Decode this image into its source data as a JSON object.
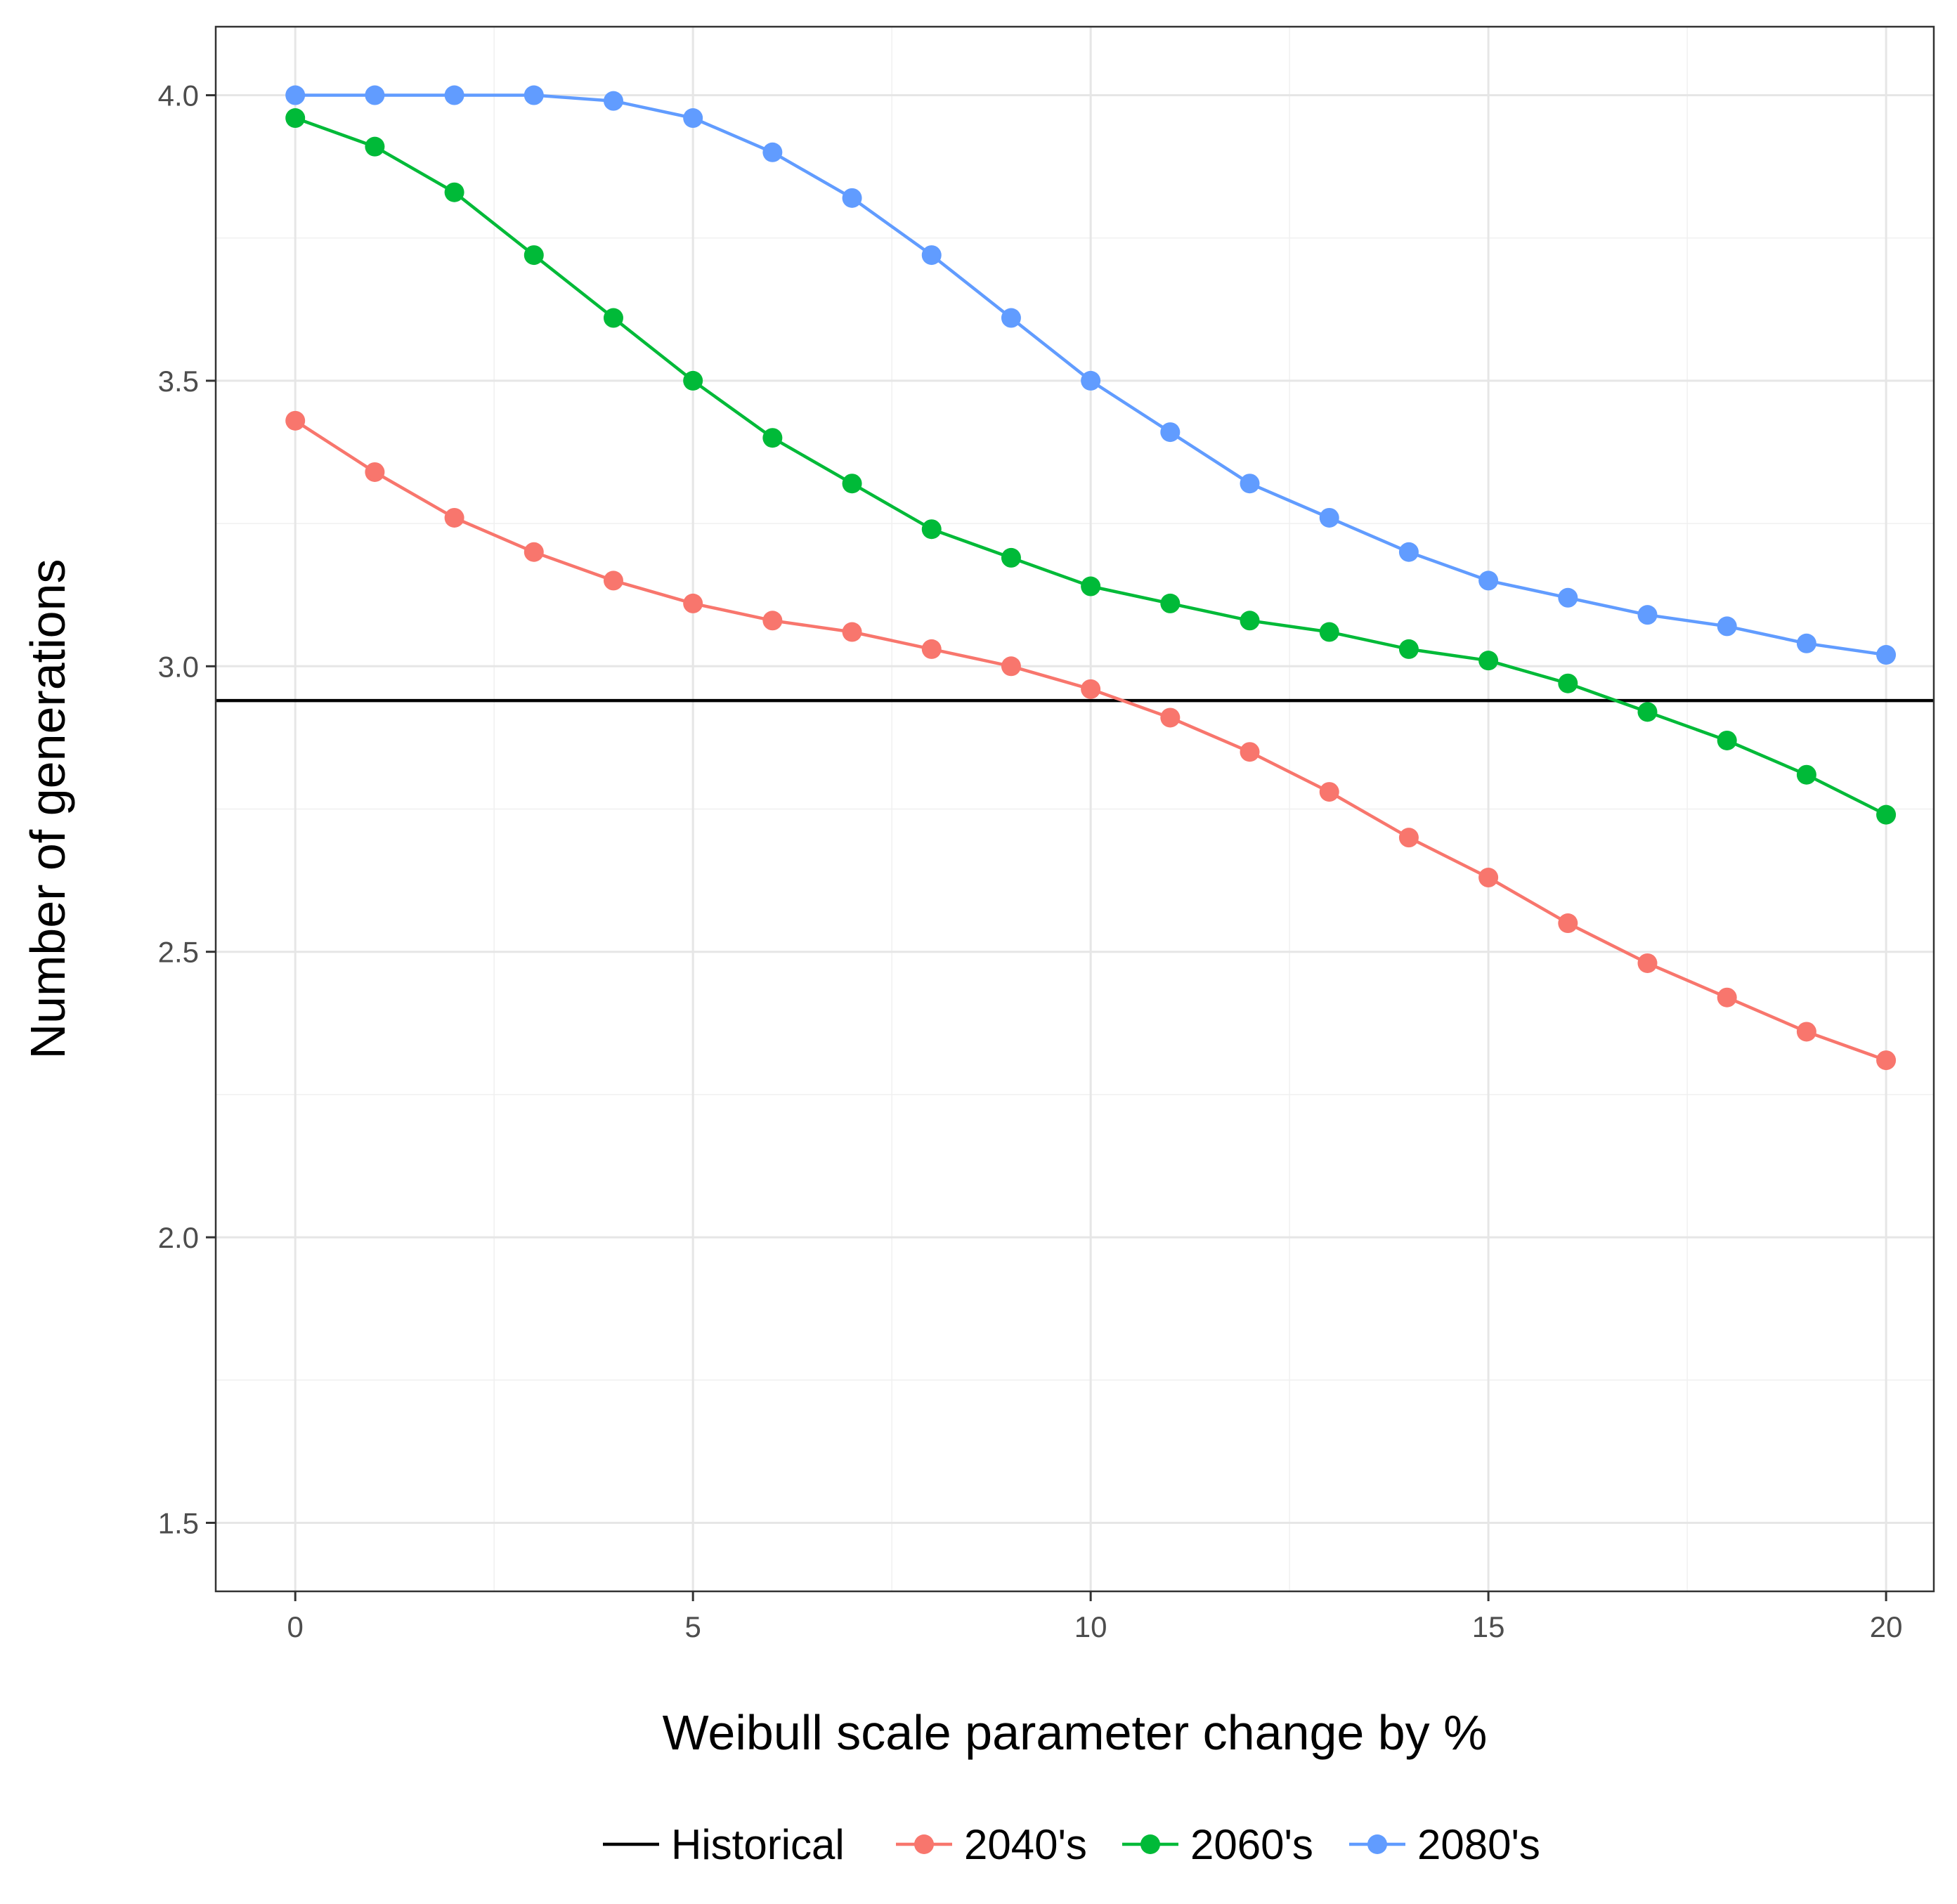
{
  "chart_data": {
    "type": "line",
    "xlabel": "Weibull scale parameter change by %",
    "ylabel": "Number of generations",
    "xlim": [
      -1,
      20.6
    ],
    "ylim": [
      1.38,
      4.12
    ],
    "x_ticks": [
      0,
      5,
      10,
      15,
      20
    ],
    "y_ticks": [
      1.5,
      2.0,
      2.5,
      3.0,
      3.5,
      4.0
    ],
    "y_tick_labels": [
      "1.5",
      "2.0",
      "2.5",
      "3.0",
      "3.5",
      "4.0"
    ],
    "grid": true,
    "legend_position": "bottom",
    "reference_line": {
      "name": "Historical",
      "y": 2.94,
      "color": "#000000"
    },
    "x": [
      0,
      1,
      2,
      3,
      4,
      5,
      6,
      7,
      8,
      9,
      10,
      11,
      12,
      13,
      14,
      15,
      16,
      17,
      18,
      19,
      20
    ],
    "series": [
      {
        "name": "2040's",
        "color": "#F8766D",
        "values": [
          3.43,
          3.34,
          3.26,
          3.2,
          3.15,
          3.11,
          3.08,
          3.06,
          3.03,
          3.0,
          2.96,
          2.91,
          2.85,
          2.78,
          2.7,
          2.63,
          2.55,
          2.48,
          2.42,
          2.36,
          2.31
        ]
      },
      {
        "name": "2060's",
        "color": "#00BA38",
        "values": [
          3.96,
          3.91,
          3.83,
          3.72,
          3.61,
          3.5,
          3.4,
          3.32,
          3.24,
          3.19,
          3.14,
          3.11,
          3.08,
          3.06,
          3.03,
          3.01,
          2.97,
          2.92,
          2.87,
          2.81,
          2.74
        ]
      },
      {
        "name": "2080's",
        "color": "#619CFF",
        "values": [
          4.0,
          4.0,
          4.0,
          4.0,
          3.99,
          3.96,
          3.9,
          3.82,
          3.72,
          3.61,
          3.5,
          3.41,
          3.32,
          3.26,
          3.2,
          3.15,
          3.12,
          3.09,
          3.07,
          3.04,
          3.02
        ]
      }
    ]
  }
}
